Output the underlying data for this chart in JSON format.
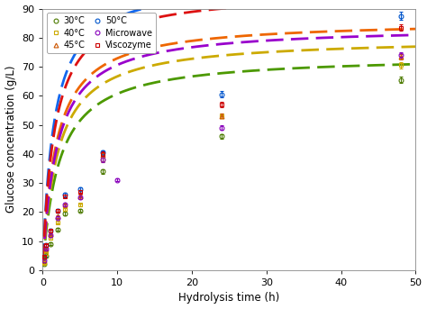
{
  "xlabel": "Hydrolysis time (h)",
  "ylabel": "Glucose concentration (g/L)",
  "xlim": [
    0,
    50
  ],
  "ylim": [
    0,
    90
  ],
  "xticks": [
    0,
    10,
    20,
    30,
    40,
    50
  ],
  "yticks": [
    0,
    10,
    20,
    30,
    40,
    50,
    60,
    70,
    80,
    90
  ],
  "series": [
    {
      "label": "30°C",
      "color": "#4c7a00",
      "line_color": "#4c9900",
      "marker": "o",
      "markersize": 3.5,
      "A": 74.0,
      "B": 2.2,
      "data_x": [
        0.25,
        0.5,
        1.0,
        2.0,
        3.0,
        5.0,
        8.0,
        24.0,
        48.0
      ],
      "data_y": [
        2.0,
        5.0,
        9.0,
        14.0,
        19.5,
        20.5,
        34.0,
        46.0,
        65.5
      ],
      "yerr": [
        0.3,
        0.3,
        0.5,
        0.5,
        0.5,
        0.5,
        0.8,
        0.8,
        1.0
      ]
    },
    {
      "label": "40°C",
      "color": "#ccaa00",
      "line_color": "#ccaa00",
      "marker": "s",
      "markersize": 3.5,
      "A": 80.0,
      "B": 2.0,
      "data_x": [
        0.25,
        0.5,
        1.0,
        2.0,
        3.0,
        5.0,
        8.0,
        24.0,
        48.0
      ],
      "data_y": [
        2.5,
        6.0,
        11.0,
        16.5,
        21.0,
        22.5,
        38.0,
        53.0,
        70.5
      ],
      "yerr": [
        0.3,
        0.3,
        0.5,
        0.5,
        0.5,
        0.5,
        0.8,
        0.8,
        1.0
      ]
    },
    {
      "label": "45°C",
      "color": "#cc5500",
      "line_color": "#ee6600",
      "marker": "^",
      "markersize": 3.5,
      "A": 86.0,
      "B": 1.8,
      "data_x": [
        0.25,
        0.5,
        1.0,
        2.0,
        3.0,
        5.0,
        8.0,
        24.0,
        48.0
      ],
      "data_y": [
        3.5,
        7.5,
        12.5,
        18.5,
        22.5,
        25.5,
        39.5,
        53.0,
        73.5
      ],
      "yerr": [
        0.3,
        0.3,
        0.5,
        0.5,
        0.5,
        0.5,
        0.8,
        0.8,
        1.0
      ]
    },
    {
      "label": "50°C",
      "color": "#0055cc",
      "line_color": "#1166ee",
      "marker": "o",
      "markersize": 3.5,
      "A": 100.0,
      "B": 1.5,
      "data_x": [
        0.25,
        0.5,
        1.0,
        2.0,
        3.0,
        5.0,
        8.0,
        24.0,
        48.0
      ],
      "data_y": [
        4.5,
        8.5,
        13.5,
        20.5,
        26.0,
        28.0,
        40.5,
        60.5,
        87.5
      ],
      "yerr": [
        0.3,
        0.4,
        0.5,
        0.5,
        0.5,
        0.5,
        0.8,
        1.0,
        1.5
      ]
    },
    {
      "label": "Microwave",
      "color": "#8800bb",
      "line_color": "#9900cc",
      "marker": "o",
      "markersize": 3.5,
      "A": 84.0,
      "B": 1.9,
      "data_x": [
        0.25,
        0.5,
        1.0,
        2.0,
        3.0,
        5.0,
        8.0,
        10.0,
        24.0,
        48.0
      ],
      "data_y": [
        3.5,
        7.5,
        12.0,
        18.0,
        22.5,
        25.0,
        38.0,
        31.0,
        49.0,
        74.0
      ],
      "yerr": [
        0.3,
        0.3,
        0.5,
        0.5,
        0.5,
        0.5,
        0.8,
        0.5,
        0.8,
        1.0
      ]
    },
    {
      "label": "Viscozyme",
      "color": "#cc0000",
      "line_color": "#dd1111",
      "marker": "s",
      "markersize": 3.5,
      "A": 96.0,
      "B": 1.6,
      "data_x": [
        0.25,
        0.5,
        1.0,
        2.0,
        3.0,
        5.0,
        8.0,
        24.0,
        48.0
      ],
      "data_y": [
        4.5,
        8.5,
        13.5,
        20.5,
        25.5,
        27.0,
        40.0,
        57.0,
        83.5
      ],
      "yerr": [
        0.3,
        0.4,
        0.5,
        0.5,
        0.5,
        0.5,
        0.8,
        0.8,
        1.0
      ]
    }
  ],
  "bg_color": "#ffffff",
  "figsize": [
    4.74,
    3.43
  ],
  "dpi": 100
}
